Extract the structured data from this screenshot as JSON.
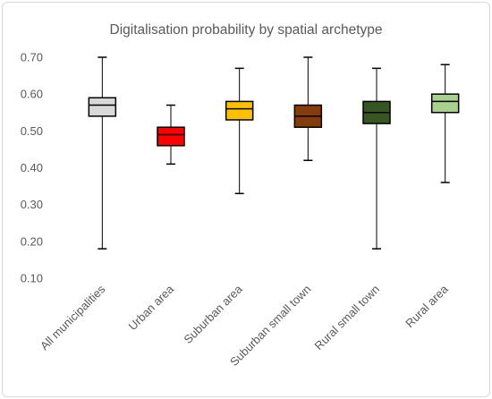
{
  "chart_data": {
    "type": "box",
    "title": "Digitalisation probability by spatial archetype",
    "xlabel": "",
    "ylabel": "",
    "ylim": [
      0.1,
      0.7
    ],
    "yticks": [
      "0.10",
      "0.20",
      "0.30",
      "0.40",
      "0.50",
      "0.60",
      "0.70"
    ],
    "grid": false,
    "categories": [
      "All municipalities",
      "Urban area",
      "Suburban area",
      "Suburban small town",
      "Rural small town",
      "Rural area"
    ],
    "boxes": [
      {
        "min": 0.18,
        "q1": 0.54,
        "median": 0.57,
        "q3": 0.59,
        "max": 0.7,
        "color": "#d9d9d9"
      },
      {
        "min": 0.41,
        "q1": 0.46,
        "median": 0.49,
        "q3": 0.51,
        "max": 0.57,
        "color": "#ff0000"
      },
      {
        "min": 0.33,
        "q1": 0.53,
        "median": 0.56,
        "q3": 0.58,
        "max": 0.67,
        "color": "#ffc000"
      },
      {
        "min": 0.42,
        "q1": 0.51,
        "median": 0.54,
        "q3": 0.57,
        "max": 0.7,
        "color": "#843c0c"
      },
      {
        "min": 0.18,
        "q1": 0.52,
        "median": 0.55,
        "q3": 0.58,
        "max": 0.67,
        "color": "#375623"
      },
      {
        "min": 0.36,
        "q1": 0.55,
        "median": 0.58,
        "q3": 0.6,
        "max": 0.68,
        "color": "#a9d18e"
      }
    ]
  }
}
